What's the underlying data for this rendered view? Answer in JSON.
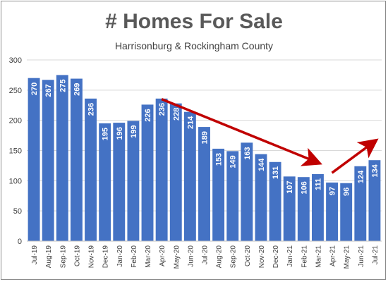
{
  "colors": {
    "bar": "#4472C4",
    "arrow": "#C00000",
    "grid": "#d9d9d9",
    "text": "#595959"
  },
  "chart_data": {
    "type": "bar",
    "title": "# Homes For Sale",
    "subtitle": "Harrisonburg & Rockingham County",
    "ylim": [
      0,
      300
    ],
    "yticks": [
      0,
      50,
      100,
      150,
      200,
      250,
      300
    ],
    "grid": true,
    "data_labels": true,
    "categories": [
      "Jul-19",
      "Aug-19",
      "Sep-19",
      "Oct-19",
      "Nov-19",
      "Dec-19",
      "Jan-20",
      "Feb-20",
      "Mar-20",
      "Apr-20",
      "May-20",
      "Jun-20",
      "Jul-20",
      "Aug-20",
      "Sep-20",
      "Oct-20",
      "Nov-20",
      "Dec-20",
      "Jan-21",
      "Feb-21",
      "Mar-21",
      "Apr-21",
      "May-21",
      "Jun-21",
      "Jul-21"
    ],
    "values": [
      270,
      267,
      275,
      269,
      236,
      195,
      196,
      199,
      226,
      236,
      228,
      214,
      189,
      153,
      149,
      163,
      144,
      131,
      107,
      106,
      111,
      97,
      96,
      124,
      134
    ],
    "annotations": [
      {
        "type": "arrow",
        "from": [
          "Apr-20",
          235
        ],
        "to": [
          "Mar-21",
          130
        ]
      },
      {
        "type": "arrow",
        "from": [
          "Apr-21",
          113
        ],
        "to": [
          "Jul-21",
          165
        ]
      }
    ]
  }
}
